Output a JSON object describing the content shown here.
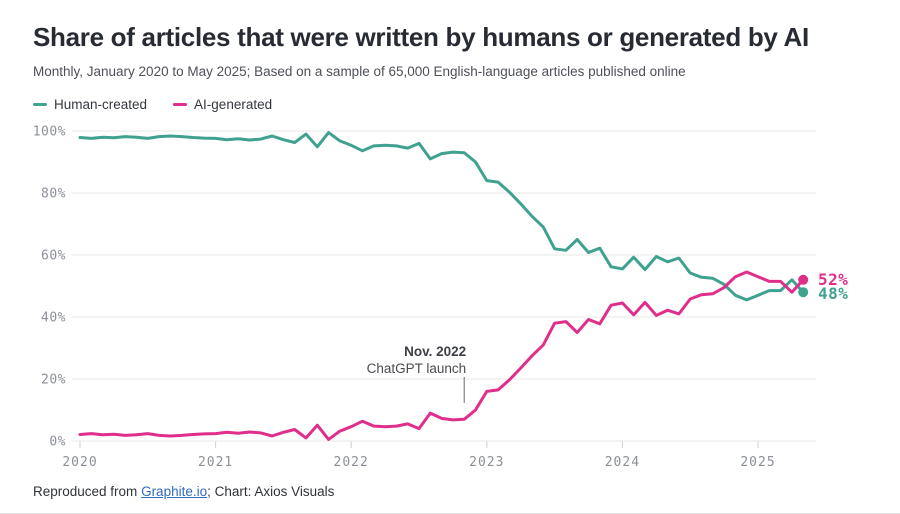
{
  "header": {
    "title": "Share of articles that were written by humans or generated by AI",
    "subtitle": "Monthly, January 2020 to May 2025; Based on a sample of 65,000 English-language articles published online"
  },
  "legend": [
    {
      "label": "Human-created",
      "color": "#3fa18f"
    },
    {
      "label": "AI-generated",
      "color": "#df2e8b"
    }
  ],
  "annotation": {
    "line1": "Nov. 2022",
    "line2": "ChatGPT launch",
    "month_index": 34
  },
  "footer": {
    "prefix": "Reproduced from ",
    "link": "Graphite.io",
    "suffix": "; Chart: Axios Visuals"
  },
  "chart_data": {
    "type": "line",
    "title": "Share of articles that were written by humans or generated by AI",
    "x_start": "2020-01",
    "x_end": "2025-05",
    "x_interval": "month",
    "points_per_series": 65,
    "x_tick_labels": [
      "2020",
      "2021",
      "2022",
      "2023",
      "2024",
      "2025"
    ],
    "y_ticks": [
      0,
      20,
      40,
      60,
      80,
      100
    ],
    "y_tick_labels": [
      "0%",
      "20%",
      "40%",
      "60%",
      "80%",
      "100%"
    ],
    "ylim": [
      0,
      100
    ],
    "grid": true,
    "legend_position": "top-left",
    "colors": {
      "grid": "#e8e8ea",
      "tick": "#cfcfcf",
      "axis_label": "#8b9097",
      "annotation_bold": "#3d4045",
      "annotation": "#4a4d52"
    },
    "series": [
      {
        "name": "Human-created",
        "color": "#3fa18f",
        "end_label": "48%",
        "values": [
          97.9,
          97.6,
          98.0,
          97.8,
          98.2,
          98.0,
          97.6,
          98.2,
          98.4,
          98.2,
          97.9,
          97.7,
          97.6,
          97.2,
          97.5,
          97.1,
          97.4,
          98.4,
          97.2,
          96.3,
          99.0,
          94.9,
          99.5,
          96.8,
          95.4,
          93.6,
          95.2,
          95.4,
          95.2,
          94.5,
          96.0,
          91.0,
          92.7,
          93.2,
          93.0,
          90.0,
          84.0,
          83.5,
          80.3,
          76.5,
          72.5,
          69.0,
          62.0,
          61.5,
          65.0,
          60.8,
          62.2,
          56.2,
          55.5,
          59.3,
          55.3,
          59.5,
          57.8,
          59.0,
          54.2,
          52.8,
          52.5,
          50.5,
          47.0,
          45.5,
          47.0,
          48.5,
          48.5,
          52.0,
          48.0
        ]
      },
      {
        "name": "AI-generated",
        "color": "#df2e8b",
        "end_label": "52%",
        "values": [
          2.1,
          2.4,
          2.0,
          2.2,
          1.8,
          2.0,
          2.4,
          1.8,
          1.6,
          1.8,
          2.1,
          2.3,
          2.4,
          2.8,
          2.5,
          2.9,
          2.6,
          1.6,
          2.8,
          3.7,
          1.0,
          5.1,
          0.5,
          3.2,
          4.6,
          6.4,
          4.8,
          4.6,
          4.8,
          5.5,
          4.0,
          9.0,
          7.3,
          6.8,
          7.0,
          10.0,
          16.0,
          16.5,
          19.7,
          23.5,
          27.5,
          31.0,
          38.0,
          38.5,
          35.0,
          39.2,
          37.8,
          43.8,
          44.5,
          40.7,
          44.7,
          40.5,
          42.2,
          41.0,
          45.8,
          47.2,
          47.5,
          49.5,
          53.0,
          54.5,
          53.0,
          51.5,
          51.5,
          48.0,
          52.0
        ]
      }
    ]
  }
}
